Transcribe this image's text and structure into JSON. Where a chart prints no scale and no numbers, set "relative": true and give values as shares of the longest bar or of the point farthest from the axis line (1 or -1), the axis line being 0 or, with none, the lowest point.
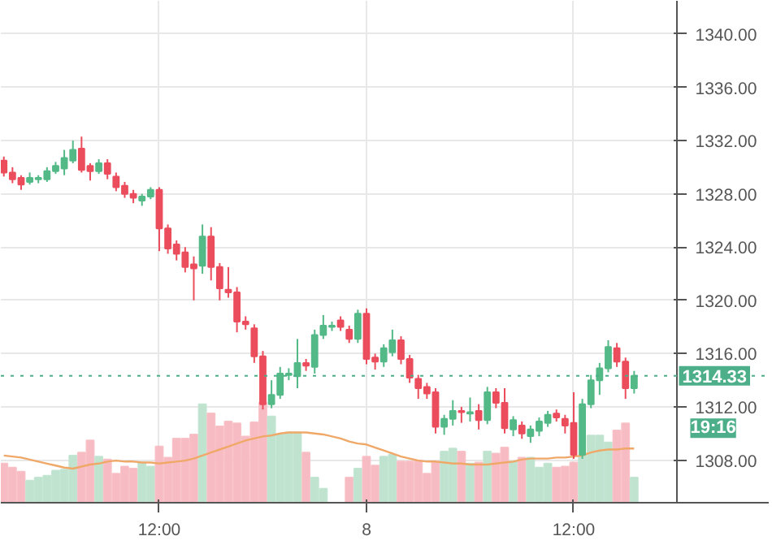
{
  "chart_data": [
    {
      "type": "candlestick",
      "categories": [
        null,
        null,
        null,
        null,
        null,
        null,
        null,
        null,
        null,
        null,
        null,
        null,
        null,
        null,
        null,
        null,
        null,
        null,
        "12:00",
        null,
        null,
        null,
        null,
        null,
        null,
        null,
        null,
        null,
        null,
        null,
        null,
        null,
        null,
        null,
        null,
        null,
        null,
        null,
        null,
        null,
        null,
        null,
        "8",
        null,
        null,
        null,
        null,
        null,
        null,
        null,
        null,
        null,
        null,
        null,
        null,
        null,
        null,
        null,
        null,
        null,
        null,
        null,
        null,
        null,
        null,
        null,
        "12:00",
        null,
        null,
        null,
        null,
        null,
        null,
        null
      ],
      "ohlc": [
        [
          1330.5,
          1330.8,
          1329.3,
          1329.6
        ],
        [
          1329.6,
          1330.0,
          1328.8,
          1329.1
        ],
        [
          1329.2,
          1329.4,
          1328.3,
          1328.7
        ],
        [
          1328.9,
          1329.6,
          1328.7,
          1329.2
        ],
        [
          1329.1,
          1329.4,
          1328.8,
          1329.2
        ],
        [
          1329.1,
          1330.0,
          1328.9,
          1329.7
        ],
        [
          1329.7,
          1330.4,
          1329.5,
          1330.1
        ],
        [
          1329.9,
          1331.3,
          1329.4,
          1330.7
        ],
        [
          1330.5,
          1332.0,
          1330.3,
          1331.3
        ],
        [
          1331.4,
          1332.3,
          1329.6,
          1329.8
        ],
        [
          1330.1,
          1330.3,
          1329.0,
          1329.7
        ],
        [
          1329.7,
          1330.6,
          1329.5,
          1330.3
        ],
        [
          1330.3,
          1330.6,
          1329.1,
          1329.5
        ],
        [
          1329.3,
          1329.6,
          1328.2,
          1328.5
        ],
        [
          1328.6,
          1328.9,
          1327.7,
          1328.0
        ],
        [
          1328.0,
          1328.3,
          1327.3,
          1327.7
        ],
        [
          1327.5,
          1328.0,
          1327.1,
          1327.8
        ],
        [
          1327.8,
          1328.5,
          1327.6,
          1328.3
        ],
        [
          1328.3,
          1328.5,
          1323.7,
          1325.4
        ],
        [
          1325.4,
          1325.7,
          1323.5,
          1323.9
        ],
        [
          1324.2,
          1324.5,
          1323.0,
          1323.5
        ],
        [
          1323.6,
          1324.0,
          1322.1,
          1322.5
        ],
        [
          1322.7,
          1323.3,
          1320.0,
          1322.4
        ],
        [
          1322.6,
          1325.7,
          1322.0,
          1324.8
        ],
        [
          1324.8,
          1325.5,
          1321.5,
          1322.5
        ],
        [
          1322.5,
          1322.8,
          1320.0,
          1320.9
        ],
        [
          1320.8,
          1322.5,
          1320.2,
          1320.6
        ],
        [
          1320.6,
          1321.0,
          1317.6,
          1318.4
        ],
        [
          1318.4,
          1318.8,
          1317.8,
          1318.2
        ],
        [
          1317.9,
          1318.2,
          1315.3,
          1315.8
        ],
        [
          1315.8,
          1316.2,
          1311.8,
          1312.2
        ],
        [
          1312.2,
          1314.0,
          1311.9,
          1312.9
        ],
        [
          1312.9,
          1315.0,
          1312.6,
          1314.5
        ],
        [
          1314.4,
          1314.9,
          1314.0,
          1314.5
        ],
        [
          1314.3,
          1317.1,
          1313.4,
          1315.3
        ],
        [
          1315.3,
          1315.6,
          1314.7,
          1315.1
        ],
        [
          1315.0,
          1317.8,
          1314.5,
          1317.4
        ],
        [
          1317.4,
          1318.9,
          1317.1,
          1318.1
        ],
        [
          1318.0,
          1318.4,
          1317.7,
          1318.1
        ],
        [
          1318.5,
          1318.8,
          1317.7,
          1318.0
        ],
        [
          1317.8,
          1318.1,
          1316.8,
          1317.1
        ],
        [
          1317.1,
          1319.3,
          1316.8,
          1319.0
        ],
        [
          1319.0,
          1319.4,
          1315.2,
          1315.6
        ],
        [
          1315.7,
          1316.0,
          1314.8,
          1315.4
        ],
        [
          1315.4,
          1316.7,
          1315.0,
          1316.4
        ],
        [
          1316.1,
          1317.8,
          1315.8,
          1317.0
        ],
        [
          1317.0,
          1317.3,
          1315.2,
          1315.6
        ],
        [
          1315.6,
          1315.9,
          1313.8,
          1314.2
        ],
        [
          1314.1,
          1314.4,
          1312.6,
          1313.4
        ],
        [
          1313.5,
          1313.8,
          1312.6,
          1313.0
        ],
        [
          1313.1,
          1313.4,
          1310.0,
          1310.5
        ],
        [
          1310.5,
          1311.4,
          1309.9,
          1311.1
        ],
        [
          1311.1,
          1312.5,
          1310.6,
          1311.7
        ],
        [
          1311.7,
          1312.0,
          1310.8,
          1311.6
        ],
        [
          1311.5,
          1312.7,
          1310.9,
          1311.6
        ],
        [
          1311.7,
          1312.2,
          1310.3,
          1311.0
        ],
        [
          1311.0,
          1313.5,
          1310.7,
          1313.1
        ],
        [
          1313.1,
          1313.4,
          1311.9,
          1312.3
        ],
        [
          1312.3,
          1313.4,
          1310.0,
          1310.4
        ],
        [
          1310.3,
          1311.3,
          1309.8,
          1311.0
        ],
        [
          1310.6,
          1310.9,
          1309.6,
          1310.0
        ],
        [
          1309.8,
          1310.6,
          1309.3,
          1310.3
        ],
        [
          1310.2,
          1311.2,
          1309.8,
          1310.9
        ],
        [
          1310.8,
          1311.7,
          1310.5,
          1311.4
        ],
        [
          1311.5,
          1311.8,
          1310.9,
          1311.2
        ],
        [
          1311.1,
          1311.4,
          1310.0,
          1310.6
        ],
        [
          1310.8,
          1313.1,
          1308.1,
          1308.4
        ],
        [
          1308.4,
          1312.6,
          1308.1,
          1312.2
        ],
        [
          1312.2,
          1314.4,
          1311.9,
          1314.0
        ],
        [
          1314.0,
          1315.3,
          1312.9,
          1314.9
        ],
        [
          1314.9,
          1317.0,
          1314.6,
          1316.5
        ],
        [
          1316.4,
          1316.8,
          1315.0,
          1315.4
        ],
        [
          1315.4,
          1315.7,
          1312.6,
          1313.4
        ],
        [
          1313.4,
          1314.7,
          1313.0,
          1314.33
        ]
      ],
      "colors": [
        "#eb4d5c",
        "#eb4d5c",
        "#eb4d5c",
        "#53b987",
        "#53b987",
        "#53b987",
        "#53b987",
        "#53b987",
        "#53b987",
        "#eb4d5c",
        "#eb4d5c",
        "#53b987",
        "#eb4d5c",
        "#eb4d5c",
        "#eb4d5c",
        "#eb4d5c",
        "#53b987",
        "#53b987",
        "#eb4d5c",
        "#eb4d5c",
        "#eb4d5c",
        "#eb4d5c",
        "#eb4d5c",
        "#53b987",
        "#eb4d5c",
        "#eb4d5c",
        "#eb4d5c",
        "#eb4d5c",
        "#eb4d5c",
        "#eb4d5c",
        "#eb4d5c",
        "#53b987",
        "#53b987",
        "#53b987",
        "#53b987",
        "#eb4d5c",
        "#53b987",
        "#53b987",
        "#53b987",
        "#eb4d5c",
        "#eb4d5c",
        "#53b987",
        "#eb4d5c",
        "#eb4d5c",
        "#53b987",
        "#53b987",
        "#eb4d5c",
        "#eb4d5c",
        "#eb4d5c",
        "#eb4d5c",
        "#eb4d5c",
        "#53b987",
        "#53b987",
        "#eb4d5c",
        "#53b987",
        "#eb4d5c",
        "#53b987",
        "#eb4d5c",
        "#eb4d5c",
        "#53b987",
        "#eb4d5c",
        "#53b987",
        "#53b987",
        "#53b987",
        "#eb4d5c",
        "#eb4d5c",
        "#eb4d5c",
        "#53b987",
        "#53b987",
        "#53b987",
        "#53b987",
        "#eb4d5c",
        "#eb4d5c",
        "#53b987"
      ],
      "ylim": [
        1304.8,
        1342.5
      ],
      "yticks": [
        {
          "value": 1308,
          "label": "1308.00"
        },
        {
          "value": 1312,
          "label": "1312.00"
        },
        {
          "value": 1316,
          "label": "1316.00"
        },
        {
          "value": 1320,
          "label": "1320.00"
        },
        {
          "value": 1324,
          "label": "1324.00"
        },
        {
          "value": 1328,
          "label": "1328.00"
        },
        {
          "value": 1332,
          "label": "1332.00"
        },
        {
          "value": 1336,
          "label": "1336.00"
        },
        {
          "value": 1340,
          "label": "1340.00"
        }
      ],
      "grid": true,
      "ref_lines": [
        {
          "axis": "y",
          "value": 1314.33,
          "label": "1314.33",
          "color": "#4caf89",
          "line_style": "dotted"
        }
      ],
      "annotations": [
        "19:16"
      ]
    },
    {
      "type": "bar",
      "relative": true,
      "categories": [
        null,
        null,
        null,
        null,
        null,
        null,
        null,
        null,
        null,
        null,
        null,
        null,
        null,
        null,
        null,
        null,
        null,
        null,
        null,
        null,
        null,
        null,
        null,
        null,
        null,
        null,
        null,
        null,
        null,
        null,
        null,
        null,
        null,
        null,
        null,
        null,
        null,
        null,
        null,
        null,
        null,
        null,
        null,
        null,
        null,
        null,
        null,
        null,
        null,
        null,
        null,
        null,
        null,
        null,
        null,
        null,
        null,
        null,
        null,
        null,
        null,
        null,
        null,
        null,
        null,
        null,
        null,
        null,
        null,
        null,
        null,
        null,
        null,
        null
      ],
      "series": [
        {
          "type": "bar",
          "values": [
            0.39,
            0.35,
            0.31,
            0.22,
            0.25,
            0.27,
            0.32,
            0.33,
            0.47,
            0.5,
            0.62,
            0.46,
            0.43,
            0.29,
            0.36,
            0.34,
            0.4,
            0.36,
            0.56,
            0.45,
            0.64,
            0.64,
            0.68,
            0.98,
            0.89,
            0.76,
            0.81,
            0.79,
            0.66,
            0.8,
            1.0,
            0.86,
            0.68,
            0.7,
            0.7,
            0.5,
            0.25,
            0.14,
            null,
            null,
            0.25,
            0.34,
            0.46,
            0.37,
            0.46,
            0.48,
            0.41,
            0.41,
            0.42,
            0.29,
            0.41,
            0.51,
            0.54,
            0.51,
            0.39,
            0.4,
            0.51,
            0.49,
            0.55,
            0.41,
            0.45,
            0.45,
            0.35,
            0.39,
            0.35,
            0.36,
            0.4,
            0.47,
            0.67,
            0.67,
            0.6,
            0.72,
            0.79,
            0.25
          ],
          "colors": [
            "#f7bcc3",
            "#f7bcc3",
            "#f7bcc3",
            "#bfe3cf",
            "#bfe3cf",
            "#bfe3cf",
            "#bfe3cf",
            "#bfe3cf",
            "#bfe3cf",
            "#f7bcc3",
            "#f7bcc3",
            "#bfe3cf",
            "#f7bcc3",
            "#f7bcc3",
            "#f7bcc3",
            "#f7bcc3",
            "#bfe3cf",
            "#bfe3cf",
            "#f7bcc3",
            "#f7bcc3",
            "#f7bcc3",
            "#f7bcc3",
            "#f7bcc3",
            "#bfe3cf",
            "#f7bcc3",
            "#f7bcc3",
            "#f7bcc3",
            "#f7bcc3",
            "#f7bcc3",
            "#f7bcc3",
            "#f7bcc3",
            "#bfe3cf",
            "#bfe3cf",
            "#bfe3cf",
            "#bfe3cf",
            "#f7bcc3",
            "#bfe3cf",
            "#bfe3cf",
            "#bfe3cf",
            "#f7bcc3",
            "#f7bcc3",
            "#bfe3cf",
            "#f7bcc3",
            "#f7bcc3",
            "#bfe3cf",
            "#bfe3cf",
            "#f7bcc3",
            "#f7bcc3",
            "#f7bcc3",
            "#f7bcc3",
            "#f7bcc3",
            "#bfe3cf",
            "#bfe3cf",
            "#f7bcc3",
            "#bfe3cf",
            "#f7bcc3",
            "#bfe3cf",
            "#f7bcc3",
            "#f7bcc3",
            "#bfe3cf",
            "#f7bcc3",
            "#bfe3cf",
            "#bfe3cf",
            "#bfe3cf",
            "#f7bcc3",
            "#f7bcc3",
            "#f7bcc3",
            "#bfe3cf",
            "#bfe3cf",
            "#bfe3cf",
            "#bfe3cf",
            "#f7bcc3",
            "#f7bcc3",
            "#bfe3cf"
          ]
        },
        {
          "type": "line",
          "color": "#f0a868",
          "values": [
            0.47,
            0.46,
            0.45,
            0.43,
            0.41,
            0.39,
            0.37,
            0.35,
            0.34,
            0.36,
            0.38,
            0.39,
            0.41,
            0.42,
            0.41,
            0.41,
            0.4,
            0.4,
            0.39,
            0.4,
            0.41,
            0.42,
            0.44,
            0.47,
            0.5,
            0.53,
            0.56,
            0.59,
            0.62,
            0.64,
            0.66,
            0.67,
            0.69,
            0.7,
            0.7,
            0.7,
            0.69,
            0.68,
            0.66,
            0.64,
            0.61,
            0.59,
            0.58,
            0.55,
            0.52,
            0.49,
            0.46,
            0.44,
            0.42,
            0.41,
            0.41,
            0.4,
            0.39,
            0.39,
            0.38,
            0.38,
            0.38,
            0.39,
            0.4,
            0.41,
            0.43,
            0.44,
            0.44,
            0.44,
            0.45,
            0.45,
            0.46,
            0.47,
            0.5,
            0.52,
            0.53,
            0.53,
            0.54,
            0.54
          ]
        }
      ]
    }
  ]
}
